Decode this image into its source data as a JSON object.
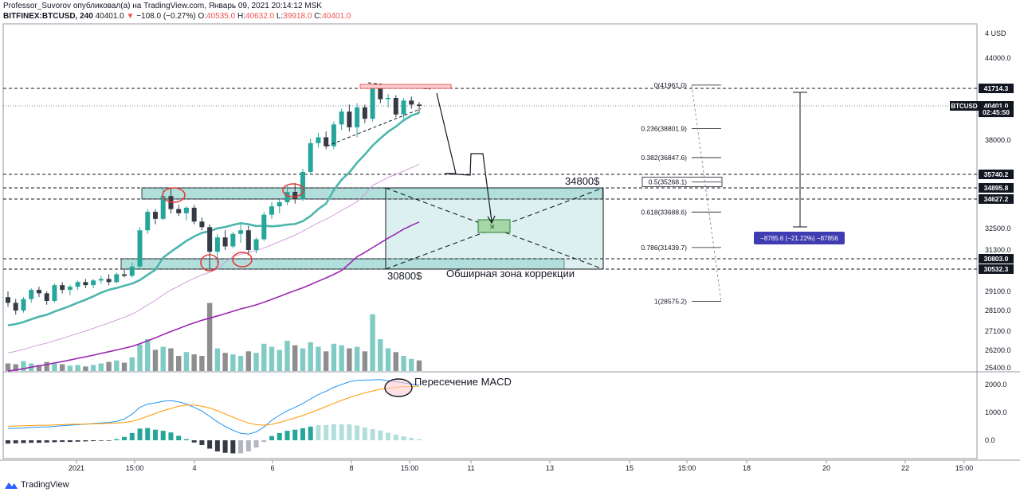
{
  "header": {
    "line1": "Professor_Suvorov опубликовал(а) на TradingView.com, Январь 09, 2021 20:14:12 MSK",
    "symbol": "BITFINEX:BTCUSD, 240",
    "price": "40401.0",
    "change_arrow": "▼",
    "change": "−108.0 (−0.27%)",
    "o_label": "O:",
    "o_value": "40535.0",
    "h_label": "H:",
    "h_value": "40632.0",
    "l_label": "L:",
    "l_value": "39918.0",
    "c_label": "C:",
    "c_value": "40401.0"
  },
  "watermark": "TradingView",
  "colors": {
    "up": "#26a69a",
    "down": "#363a45",
    "vol_up": "#80cbc4",
    "vol_down": "#8e8e8e",
    "ma_fast": "#4db6ac",
    "ma_mid": "#ce93d8",
    "ma_slow": "#9c27b0",
    "macd": "#2196f3",
    "signal": "#ff9800",
    "zone": "#b2dfdb",
    "red_circle": "#e53935",
    "label_dark": "#131722",
    "measure": "#3f3bb0"
  },
  "chart_data": {
    "type": "candlestick",
    "symbol": "BITFINEX:BTCUSD",
    "timeframe": "240",
    "currency": "USD",
    "y_ticks": [
      "44000.0",
      "38000.0",
      "32500.0",
      "31300.0",
      "29100.0",
      "28100.0",
      "27100.0",
      "26200.0",
      "25400.0"
    ],
    "y_tick_values": [
      44000,
      38000,
      32500,
      31300,
      29100,
      28100,
      27100,
      26200,
      25400
    ],
    "x_ticks": [
      "2021",
      "15:00",
      "4",
      "6",
      "8",
      "15:00",
      "11",
      "13",
      "15",
      "15:00",
      "18",
      "20",
      "22",
      "15:00"
    ],
    "price_labels": [
      {
        "text": "41714.3",
        "value": 41714.3,
        "style": "dark"
      },
      {
        "text": "40401.0",
        "value": 40401.0,
        "style": "dark"
      },
      {
        "text": "02:45:50",
        "value": 39950,
        "style": "dark"
      },
      {
        "text": "35740.2",
        "value": 35740.2,
        "style": "dark"
      },
      {
        "text": "34895.8",
        "value": 34895.8,
        "style": "dark"
      },
      {
        "text": "34627.2",
        "value": 34627.2,
        "style": "dark"
      },
      {
        "text": "30803.0",
        "value": 30803.0,
        "style": "dark"
      },
      {
        "text": "30532.3",
        "value": 30532.3,
        "style": "dark"
      }
    ],
    "last_symbol_tag": "BTCUSD",
    "fib_levels": [
      {
        "label": "0(41961.0)",
        "value": 41961.0
      },
      {
        "label": "0.236(38801.9)",
        "value": 38801.9
      },
      {
        "label": "0.382(36847.6)",
        "value": 36847.6
      },
      {
        "label": "0.5(35268.1)",
        "value": 35268.1
      },
      {
        "label": "0.618(33688.6)",
        "value": 33688.6
      },
      {
        "label": "0.786(31439.7)",
        "value": 31439.7
      },
      {
        "label": "1(28575.2)",
        "value": 28575.2
      }
    ],
    "measure_label": "−8785.6 (−21.22%) −87856",
    "annotations": {
      "resistance_label": "34800$",
      "support_label": "30800$",
      "zone_label": "Обширная зона коррекции",
      "macd_label": "Пересечение MACD"
    },
    "macd_ticks": [
      "2000.0",
      "1000.0",
      "0.0"
    ],
    "macd_tick_values": [
      2000,
      1000,
      0
    ],
    "candles": [
      [
        28800,
        29100,
        28300,
        28500
      ],
      [
        28500,
        28700,
        27900,
        28100
      ],
      [
        28100,
        28800,
        28000,
        28700
      ],
      [
        28700,
        29300,
        28500,
        29200
      ],
      [
        29200,
        29400,
        28800,
        29000
      ],
      [
        29000,
        29100,
        28400,
        28600
      ],
      [
        28600,
        29600,
        28500,
        29500
      ],
      [
        29500,
        29700,
        29000,
        29200
      ],
      [
        29200,
        29500,
        28900,
        29400
      ],
      [
        29400,
        29800,
        29200,
        29700
      ],
      [
        29700,
        29900,
        29300,
        29500
      ],
      [
        29500,
        29900,
        29300,
        29800
      ],
      [
        29800,
        30100,
        29600,
        29900
      ],
      [
        29900,
        30200,
        29500,
        29700
      ],
      [
        29700,
        30300,
        29600,
        30200
      ],
      [
        30200,
        30500,
        30000,
        30100
      ],
      [
        30100,
        30700,
        30000,
        30600
      ],
      [
        30600,
        32600,
        30500,
        32400
      ],
      [
        32400,
        33900,
        32200,
        33700
      ],
      [
        33700,
        33900,
        32800,
        33200
      ],
      [
        33200,
        34900,
        33100,
        34700
      ],
      [
        34700,
        34900,
        33600,
        33900
      ],
      [
        33900,
        34200,
        33400,
        33600
      ],
      [
        33600,
        34100,
        33100,
        34000
      ],
      [
        34000,
        34200,
        32800,
        33000
      ],
      [
        33000,
        33300,
        32400,
        32600
      ],
      [
        32600,
        32800,
        30500,
        31200
      ],
      [
        31200,
        32200,
        30700,
        32000
      ],
      [
        32000,
        32400,
        31300,
        31500
      ],
      [
        31500,
        32300,
        31400,
        32200
      ],
      [
        32200,
        32800,
        31700,
        32400
      ],
      [
        32400,
        32700,
        31000,
        31300
      ],
      [
        31300,
        32000,
        31100,
        31900
      ],
      [
        31900,
        33700,
        31800,
        33500
      ],
      [
        33500,
        34400,
        33200,
        34100
      ],
      [
        34100,
        34600,
        33600,
        34400
      ],
      [
        34400,
        35000,
        34200,
        34800
      ],
      [
        34800,
        35200,
        34300,
        34600
      ],
      [
        34600,
        36100,
        34500,
        35900
      ],
      [
        35900,
        38100,
        35700,
        37800
      ],
      [
        37800,
        38500,
        37500,
        38200
      ],
      [
        38200,
        38600,
        37400,
        37600
      ],
      [
        37600,
        39300,
        37400,
        39100
      ],
      [
        39100,
        40200,
        38700,
        40000
      ],
      [
        40000,
        40500,
        38600,
        38900
      ],
      [
        38900,
        40600,
        38200,
        40300
      ],
      [
        40300,
        40500,
        39200,
        39500
      ],
      [
        39500,
        41900,
        39300,
        41700
      ],
      [
        41700,
        41900,
        40600,
        40900
      ],
      [
        40900,
        41300,
        40300,
        41000
      ],
      [
        41000,
        41200,
        39600,
        39800
      ],
      [
        39800,
        41000,
        39500,
        40800
      ],
      [
        40800,
        41100,
        40200,
        40500
      ],
      [
        40500,
        40700,
        39900,
        40400
      ]
    ],
    "volumes": [
      [
        0.1,
        0
      ],
      [
        0.09,
        0
      ],
      [
        0.13,
        1
      ],
      [
        0.1,
        1
      ],
      [
        0.08,
        0
      ],
      [
        0.12,
        0
      ],
      [
        0.11,
        1
      ],
      [
        0.09,
        0
      ],
      [
        0.07,
        1
      ],
      [
        0.08,
        1
      ],
      [
        0.06,
        0
      ],
      [
        0.08,
        1
      ],
      [
        0.1,
        1
      ],
      [
        0.12,
        0
      ],
      [
        0.14,
        1
      ],
      [
        0.11,
        0
      ],
      [
        0.18,
        1
      ],
      [
        0.35,
        1
      ],
      [
        0.42,
        1
      ],
      [
        0.28,
        0
      ],
      [
        0.32,
        1
      ],
      [
        0.3,
        0
      ],
      [
        0.2,
        0
      ],
      [
        0.25,
        1
      ],
      [
        0.22,
        0
      ],
      [
        0.2,
        0
      ],
      [
        0.9,
        0
      ],
      [
        0.3,
        1
      ],
      [
        0.24,
        0
      ],
      [
        0.22,
        1
      ],
      [
        0.2,
        1
      ],
      [
        0.26,
        0
      ],
      [
        0.24,
        1
      ],
      [
        0.36,
        1
      ],
      [
        0.32,
        1
      ],
      [
        0.28,
        1
      ],
      [
        0.4,
        1
      ],
      [
        0.34,
        0
      ],
      [
        0.3,
        1
      ],
      [
        0.38,
        1
      ],
      [
        0.32,
        1
      ],
      [
        0.26,
        0
      ],
      [
        0.36,
        1
      ],
      [
        0.34,
        1
      ],
      [
        0.3,
        0
      ],
      [
        0.32,
        1
      ],
      [
        0.26,
        0
      ],
      [
        0.75,
        1
      ],
      [
        0.42,
        1
      ],
      [
        0.3,
        1
      ],
      [
        0.25,
        0
      ],
      [
        0.2,
        1
      ],
      [
        0.16,
        1
      ],
      [
        0.14,
        0
      ]
    ],
    "macd": [
      420,
      430,
      440,
      460,
      470,
      480,
      500,
      520,
      540,
      560,
      580,
      600,
      620,
      640,
      680,
      760,
      940,
      1180,
      1300,
      1340,
      1400,
      1420,
      1380,
      1300,
      1180,
      1050,
      860,
      660,
      500,
      360,
      250,
      220,
      300,
      480,
      720,
      900,
      1060,
      1180,
      1320,
      1480,
      1640,
      1760,
      1900,
      2000,
      2100,
      2150,
      2160,
      2170,
      2180,
      2140,
      2100,
      2060,
      2020,
      1980
    ],
    "signal": [
      500,
      510,
      520,
      530,
      540,
      540,
      550,
      560,
      570,
      580,
      580,
      590,
      600,
      610,
      620,
      640,
      680,
      760,
      860,
      960,
      1060,
      1140,
      1220,
      1260,
      1260,
      1220,
      1160,
      1060,
      950,
      830,
      720,
      620,
      560,
      540,
      570,
      640,
      720,
      800,
      890,
      990,
      1100,
      1210,
      1320,
      1430,
      1530,
      1620,
      1700,
      1770,
      1830,
      1870,
      1900,
      1920,
      1930,
      1940
    ],
    "hist": [
      -120,
      -110,
      -100,
      -90,
      -90,
      -80,
      -70,
      -60,
      -60,
      -50,
      -40,
      -30,
      -20,
      -20,
      40,
      120,
      260,
      420,
      440,
      380,
      340,
      280,
      160,
      40,
      -80,
      -170,
      -300,
      -400,
      -450,
      -470,
      -470,
      -400,
      -260,
      -60,
      150,
      260,
      340,
      380,
      430,
      490,
      540,
      550,
      580,
      570,
      570,
      530,
      460,
      400,
      350,
      270,
      200,
      140,
      90,
      40
    ]
  }
}
